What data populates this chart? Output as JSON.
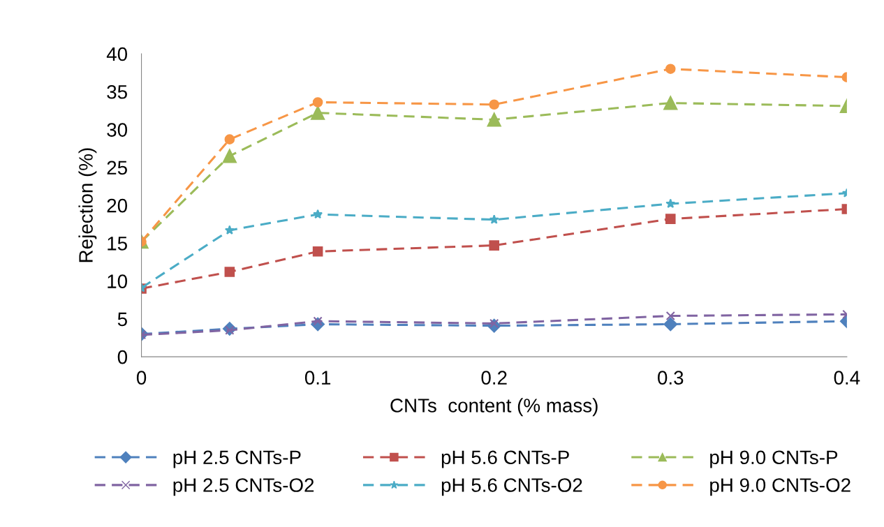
{
  "chart_data": {
    "type": "line",
    "xlabel": "CNTs  content (% mass)",
    "ylabel": "Rejection (%)",
    "x": [
      0,
      0.05,
      0.1,
      0.2,
      0.3,
      0.4
    ],
    "xlim": [
      0,
      0.4
    ],
    "xticks": [
      0,
      0.1,
      0.2,
      0.3,
      0.4
    ],
    "ylim": [
      0,
      40
    ],
    "yticks": [
      0,
      5,
      10,
      15,
      20,
      25,
      30,
      35,
      40
    ],
    "grid": false,
    "legend": "bottom",
    "line_style": "dashed",
    "series": [
      {
        "name": "pH 2.5 CNTs-P",
        "color": "#4f81bd",
        "marker": "diamond",
        "values": [
          3.0,
          3.7,
          4.3,
          4.1,
          4.3,
          4.7
        ]
      },
      {
        "name": "pH 5.6 CNTs-P",
        "color": "#c0504d",
        "marker": "square",
        "values": [
          9.0,
          11.2,
          13.9,
          14.7,
          18.2,
          19.5
        ]
      },
      {
        "name": "pH 9.0 CNTs-P",
        "color": "#9bbb59",
        "marker": "triangle",
        "values": [
          15.2,
          26.5,
          32.2,
          31.3,
          33.5,
          33.1
        ]
      },
      {
        "name": "pH 2.5 CNTs-O2",
        "color": "#8064a2",
        "marker": "cross",
        "values": [
          2.9,
          3.5,
          4.7,
          4.4,
          5.4,
          5.6
        ]
      },
      {
        "name": "pH 5.6 CNTs-O2",
        "color": "#4bacc6",
        "marker": "star",
        "values": [
          9.1,
          16.7,
          18.8,
          18.1,
          20.2,
          21.6
        ]
      },
      {
        "name": "pH 9.0 CNTs-O2",
        "color": "#f79646",
        "marker": "circle",
        "values": [
          15.2,
          28.7,
          33.6,
          33.3,
          38.0,
          36.9
        ]
      }
    ]
  }
}
